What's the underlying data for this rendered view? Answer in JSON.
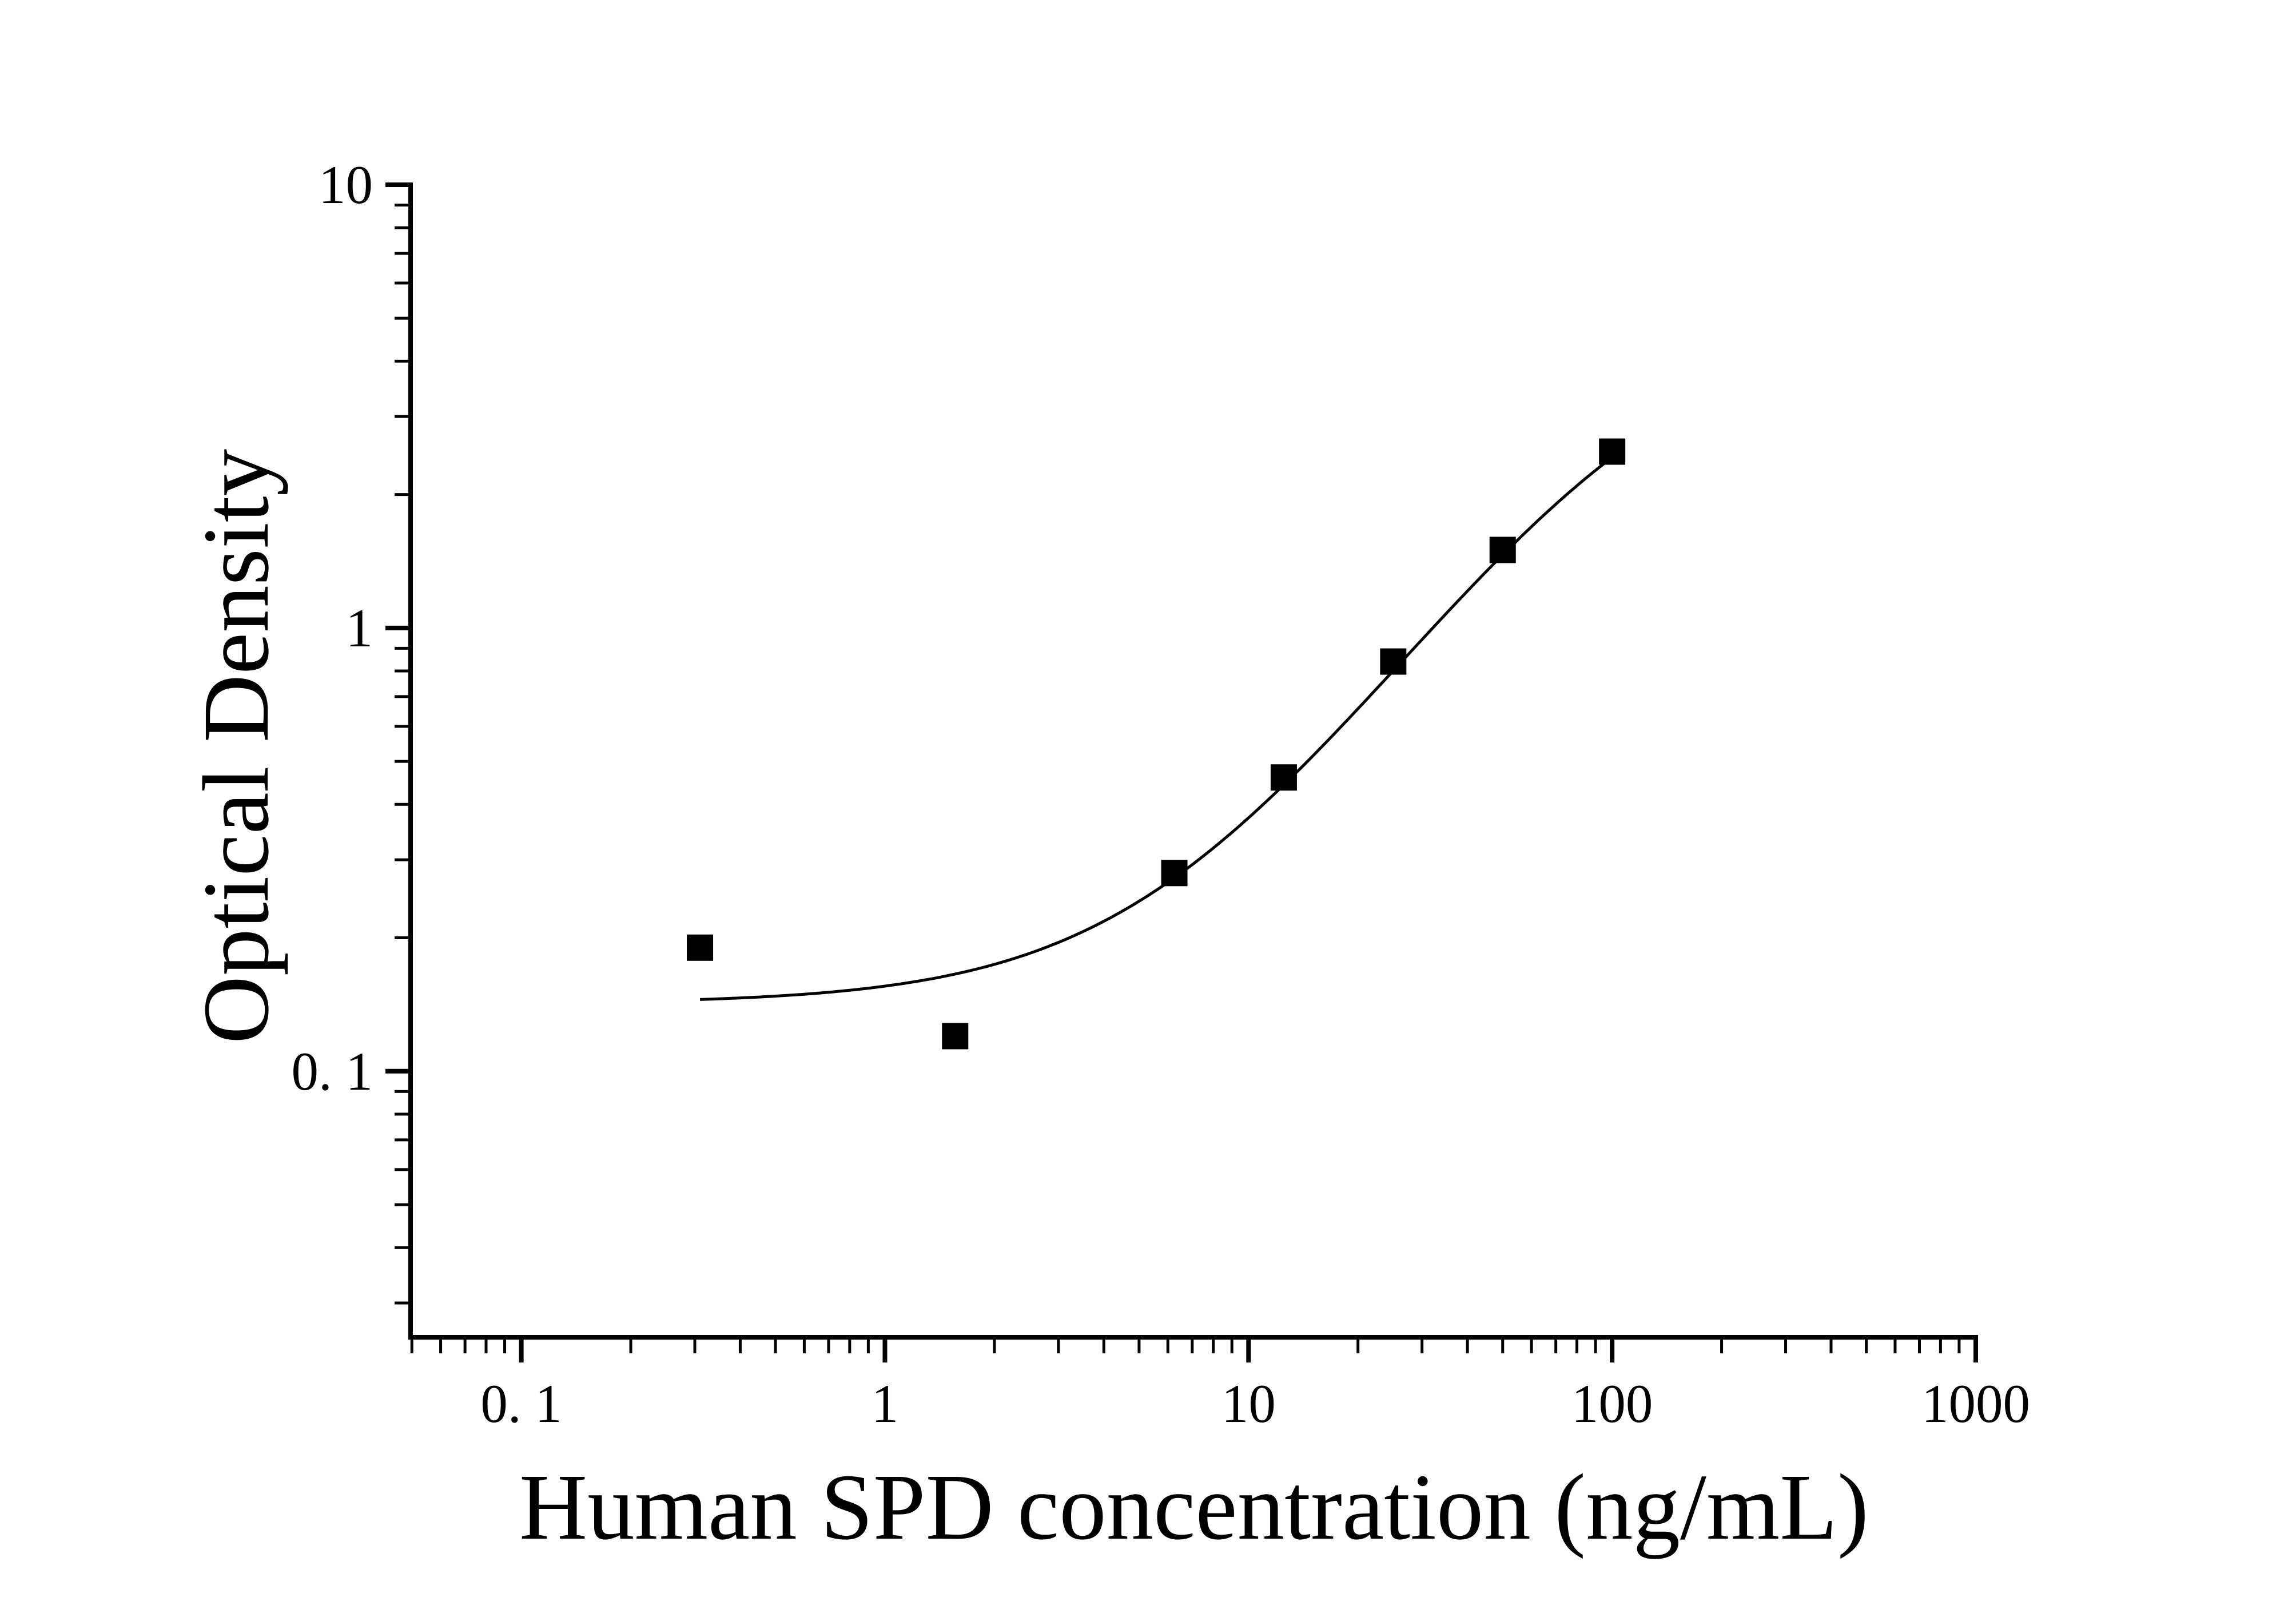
{
  "figure": {
    "background_color": "#ffffff",
    "ink_color": "#000000"
  },
  "chart_data": {
    "type": "scatter",
    "title": "",
    "xlabel": "Human SPD concentration (ng/mL)",
    "ylabel": "Optical Density",
    "x_scale": "log",
    "y_scale": "log",
    "x_range": [
      0.0496,
      1000
    ],
    "y_range": [
      0.0251,
      10
    ],
    "grid": false,
    "legend": "none",
    "x_major_ticks": [
      {
        "value": 0.1,
        "label": "0. 1"
      },
      {
        "value": 1,
        "label": "1"
      },
      {
        "value": 10,
        "label": "10"
      },
      {
        "value": 100,
        "label": "100"
      },
      {
        "value": 1000,
        "label": "1000"
      }
    ],
    "y_major_ticks": [
      {
        "value": 10,
        "label": "10"
      },
      {
        "value": 1,
        "label": "1"
      },
      {
        "value": 0.1,
        "label": "0. 1"
      }
    ],
    "minor_ticks": "log-2-to-9",
    "series": [
      {
        "name": "standards",
        "marker": "filled-square",
        "marker_color": "#000000",
        "points": [
          {
            "concentration_ng_ml": 0.31,
            "optical_density": 0.19
          },
          {
            "concentration_ng_ml": 1.56,
            "optical_density": 0.12
          },
          {
            "concentration_ng_ml": 6.25,
            "optical_density": 0.28
          },
          {
            "concentration_ng_ml": 12.5,
            "optical_density": 0.46
          },
          {
            "concentration_ng_ml": 25,
            "optical_density": 0.84
          },
          {
            "concentration_ng_ml": 50,
            "optical_density": 1.5
          },
          {
            "concentration_ng_ml": 100,
            "optical_density": 2.5
          }
        ]
      }
    ],
    "fit_curve": {
      "model": "4PL",
      "bottom": 0.142,
      "top": 5.0,
      "ec50": 110,
      "hill": 1.25,
      "x_start": 0.31,
      "x_end": 100,
      "color": "#000000"
    }
  }
}
